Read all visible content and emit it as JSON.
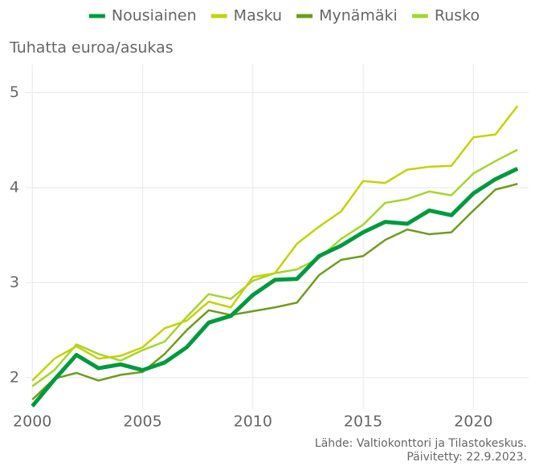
{
  "chart_data": {
    "type": "line",
    "y_axis_label": "Tuhatta euroa/asukas",
    "source": "Lähde: Valtiokonttori ja Tilastokeskus.",
    "updated": "Päivitetty: 22.9.2023.",
    "x": [
      2000,
      2001,
      2002,
      2003,
      2004,
      2005,
      2006,
      2007,
      2008,
      2009,
      2010,
      2011,
      2012,
      2013,
      2014,
      2015,
      2016,
      2017,
      2018,
      2019,
      2020,
      2021,
      2022
    ],
    "series": [
      {
        "name": "Nousiainen",
        "color": "#009a3e",
        "linewidth": 5,
        "values": [
          1.7,
          1.98,
          2.24,
          2.1,
          2.14,
          2.08,
          2.16,
          2.32,
          2.58,
          2.65,
          2.87,
          3.03,
          3.04,
          3.28,
          3.39,
          3.53,
          3.64,
          3.62,
          3.76,
          3.71,
          3.94,
          4.09,
          4.2
        ]
      },
      {
        "name": "Masku",
        "color": "#c3d300",
        "linewidth": 2.5,
        "values": [
          1.97,
          2.2,
          2.33,
          2.2,
          2.23,
          2.32,
          2.52,
          2.6,
          2.8,
          2.74,
          3.06,
          3.1,
          3.41,
          3.59,
          3.75,
          4.07,
          4.05,
          4.19,
          4.22,
          4.23,
          4.53,
          4.56,
          4.86
        ]
      },
      {
        "name": "Mynämäki",
        "color": "#6e9c1c",
        "linewidth": 2.5,
        "values": [
          1.77,
          1.99,
          2.05,
          1.97,
          2.03,
          2.06,
          2.25,
          2.5,
          2.71,
          2.66,
          2.7,
          2.74,
          2.79,
          3.08,
          3.24,
          3.28,
          3.45,
          3.56,
          3.51,
          3.53,
          3.76,
          3.98,
          4.04
        ]
      },
      {
        "name": "Rusko",
        "color": "#a5d62a",
        "linewidth": 2.5,
        "values": [
          1.91,
          2.08,
          2.35,
          2.25,
          2.18,
          2.29,
          2.38,
          2.64,
          2.88,
          2.83,
          3.02,
          3.1,
          3.14,
          3.26,
          3.46,
          3.61,
          3.84,
          3.88,
          3.96,
          3.92,
          4.15,
          4.28,
          4.4
        ]
      }
    ],
    "xlim": [
      1999.7,
      2022.5
    ],
    "xticks": [
      2000,
      2005,
      2010,
      2015,
      2020
    ],
    "ylim": [
      1.67,
      5.3
    ],
    "yticks": [
      2,
      3,
      4,
      5
    ],
    "grid": true,
    "legend": "top"
  }
}
